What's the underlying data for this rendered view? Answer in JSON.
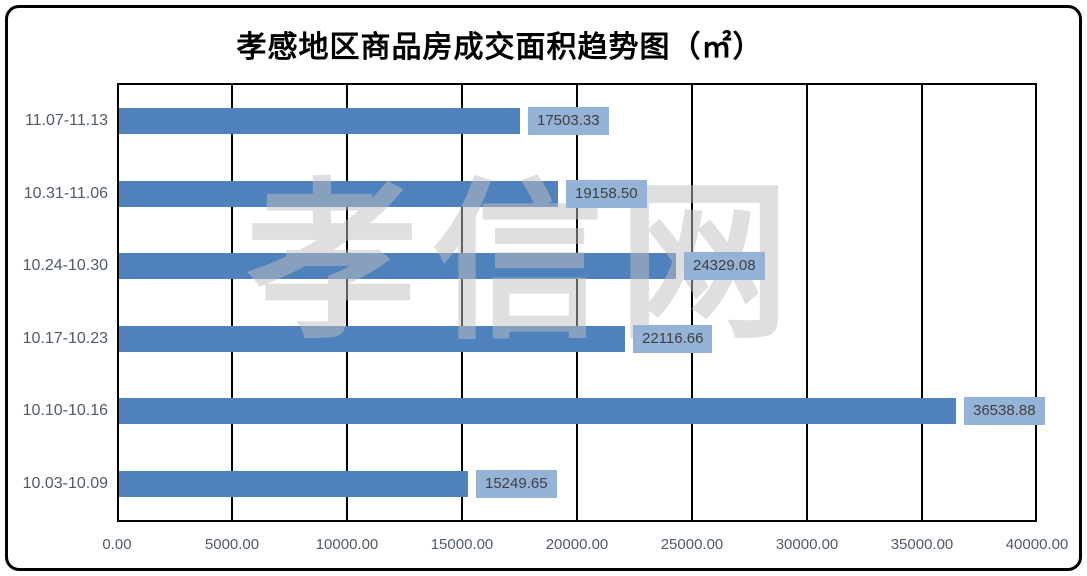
{
  "title": "孝感地区商品房成交面积趋势图（㎡）",
  "watermark": "孝信网",
  "colors": {
    "bar": "#4F81BD",
    "data_label_background": "#95B3D7",
    "data_label_text": "#3F3F3F",
    "axis_text": "#4F5B66",
    "gridline": "#000000",
    "watermark_gray": "#E6E6E6"
  },
  "chart_data": {
    "type": "bar",
    "orientation": "horizontal",
    "title": "孝感地区商品房成交面积趋势图（㎡）",
    "categories": [
      "11.07-11.13",
      "10.31-11.06",
      "10.24-10.30",
      "10.17-10.23",
      "10.10-10.16",
      "10.03-10.09"
    ],
    "values": [
      17503.33,
      19158.5,
      24329.08,
      22116.66,
      36538.88,
      15249.65
    ],
    "data_labels": [
      "17503.33",
      "19158.50",
      "24329.08",
      "22116.66",
      "36538.88",
      "15249.65"
    ],
    "xlabel": "",
    "ylabel": "",
    "xlim": [
      0,
      40000
    ],
    "x_tick_step": 5000,
    "x_ticks": [
      "0.00",
      "5000.00",
      "10000.00",
      "15000.00",
      "20000.00",
      "25000.00",
      "30000.00",
      "35000.00",
      "40000.00"
    ],
    "grid": true,
    "legend": false
  }
}
